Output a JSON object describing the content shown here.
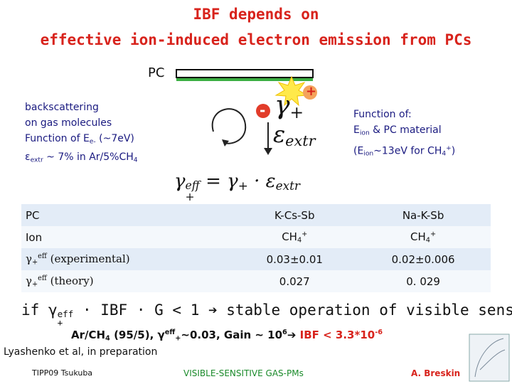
{
  "title": [
    "IBF depends on",
    "effective ion-induced electron emission from PCs"
  ],
  "diagram": {
    "pc_label": "PC",
    "left_note": [
      [
        "backscattering"
      ],
      [
        "on gas molecules"
      ],
      [
        "Function of E",
        {
          "sub": "e-"
        },
        " (~7eV)"
      ],
      [
        "ε",
        {
          "sub": "extr"
        },
        " ~ 7% in Ar/5%CH",
        {
          "sub": "4"
        }
      ]
    ],
    "ion_sign": "+",
    "electron_sign": "-",
    "gamma": [
      "γ",
      {
        "sub": "+"
      }
    ],
    "epsilon": [
      "ε",
      {
        "sub": "extr"
      }
    ],
    "right_note": [
      [
        "Function of:"
      ],
      [
        "E",
        {
          "sub": "ion"
        },
        " & PC material"
      ],
      [
        "(E",
        {
          "sub": "ion"
        },
        "~13eV for CH",
        {
          "sub": "4"
        },
        {
          "sup": "+"
        },
        ")"
      ]
    ],
    "formula": [
      "γ",
      {
        "sub": "+",
        "sup": "eff"
      },
      " = γ",
      {
        "sub": "+"
      },
      " · ε",
      {
        "sub": "extr"
      }
    ]
  },
  "table": {
    "rows": [
      [
        [
          "PC"
        ],
        [
          "K-Cs-Sb"
        ],
        [
          "Na-K-Sb"
        ]
      ],
      [
        [
          "Ion"
        ],
        [
          "CH",
          {
            "sub": "4"
          },
          {
            "sup": "+"
          }
        ],
        [
          "CH",
          {
            "sub": "4"
          },
          {
            "sup": "+"
          }
        ]
      ],
      [
        [
          "γ",
          {
            "sub": "+"
          },
          {
            "sup": "eff"
          },
          " (experimental)"
        ],
        [
          "0.03±0.01"
        ],
        [
          "0.02±0.006"
        ]
      ],
      [
        [
          "γ",
          {
            "sub": "+"
          },
          {
            "sup": "eff"
          },
          " (theory)"
        ],
        [
          "0.027"
        ],
        [
          "0. 029"
        ]
      ]
    ]
  },
  "condition": [
    "if ",
    "γ",
    {
      "sub": "+",
      "sup": "eff"
    },
    " · IBF · G < 1 ",
    "➔ stable operation of visible sensitive GPM"
  ],
  "result": [
    "Ar/CH",
    {
      "sub": "4"
    },
    " (95/5), γ",
    {
      "sup": "eff"
    },
    {
      "sub": "+"
    },
    "~0.03, Gain ~ 10",
    {
      "sup": "6"
    },
    "➔ "
  ],
  "result_red": [
    "IBF < 3.3*10",
    {
      "sup": "-6"
    }
  ],
  "footer": {
    "reference": "Lyashenko et al, in preparation",
    "conference": "TIPP09 Tsukuba",
    "topic": "VISIBLE-SENSITIVE GAS-PMs",
    "author": "A. Breskin"
  }
}
